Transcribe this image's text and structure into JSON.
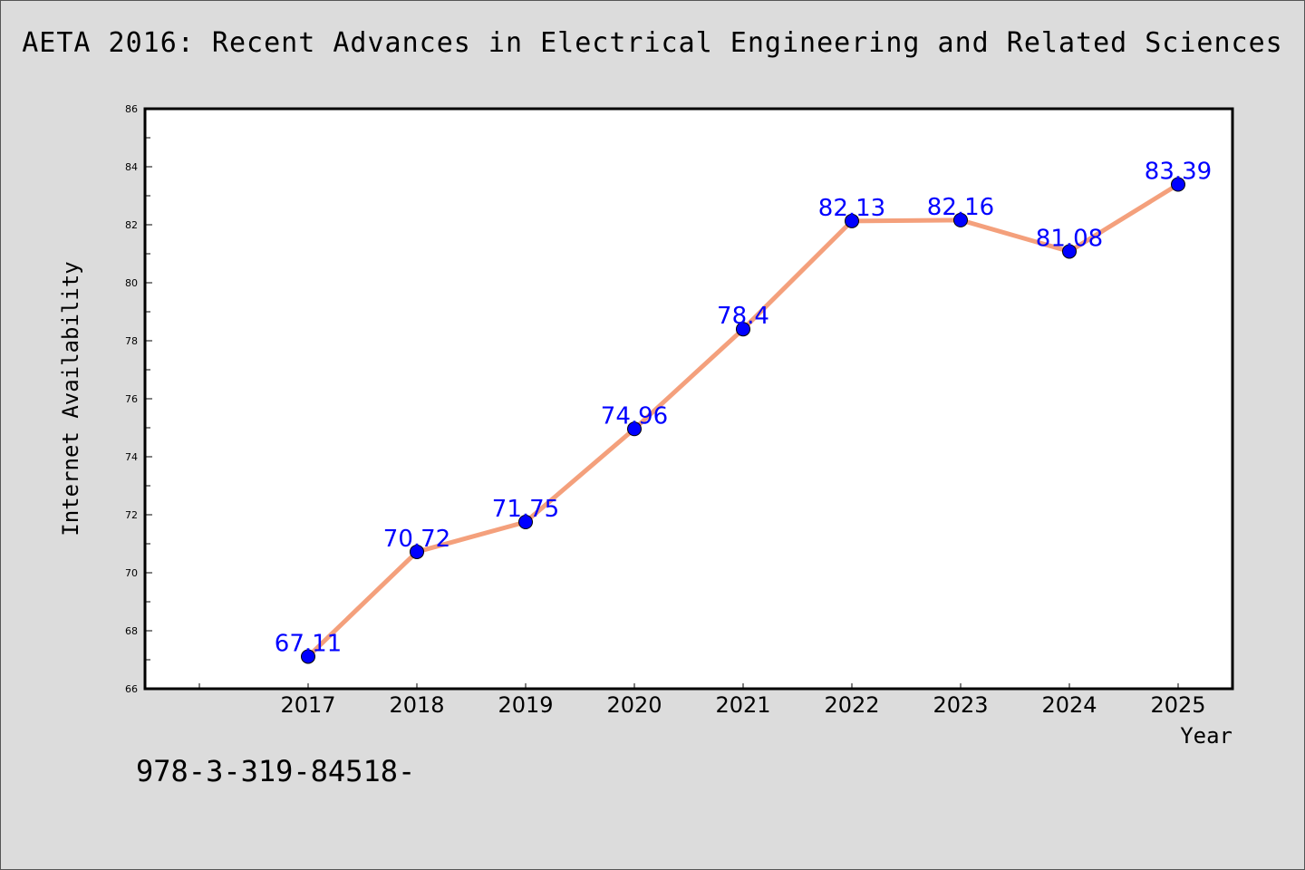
{
  "page": {
    "title": "AETA 2016: Recent Advances in Electrical Engineering and Related Sciences",
    "footer_text": "978-3-319-84518-"
  },
  "chart_data": {
    "type": "line",
    "xlabel": "Year",
    "ylabel": "Internet Availability",
    "x": [
      "2017",
      "2018",
      "2019",
      "2020",
      "2021",
      "2022",
      "2023",
      "2024",
      "2025"
    ],
    "series": [
      {
        "values": [
          67.11,
          70.72,
          71.75,
          74.96,
          78.4,
          82.13,
          82.16,
          81.08,
          83.39
        ],
        "data_labels": [
          "67.11",
          "70.72",
          "71.75",
          "74.96",
          "78.4",
          "82.13",
          "82.16",
          "81.08",
          "83.39"
        ]
      }
    ],
    "ylim": [
      66,
      86
    ],
    "yticks": [
      66,
      68,
      70,
      72,
      74,
      76,
      78,
      80,
      82,
      84,
      86
    ],
    "grid": false,
    "colors": {
      "line": "#f4a07c",
      "marker": "#0000ff",
      "data_label": "#0000ff",
      "plot_bg": "#ffffff",
      "page_bg": "#dcdcdc"
    }
  }
}
